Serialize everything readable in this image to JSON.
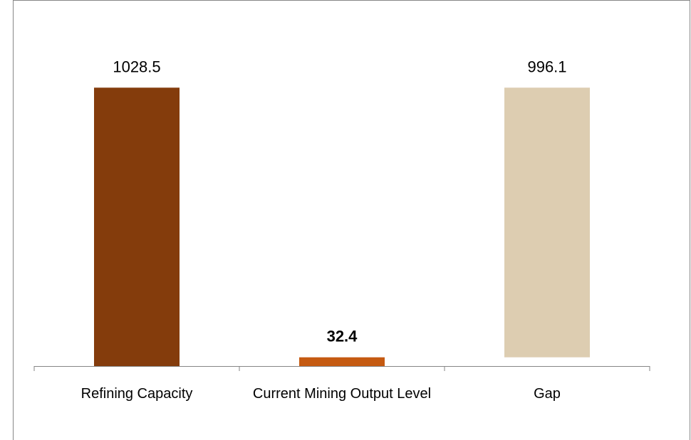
{
  "chart_data": {
    "type": "waterfall",
    "categories": [
      "Refining Capacity",
      "Current Mining Output Level",
      "Gap"
    ],
    "values": [
      1028.5,
      32.4,
      996.1
    ],
    "colors": [
      "#843c0c",
      "#c55a11",
      "#ddcdb1"
    ],
    "bold_labels": [
      false,
      true,
      false
    ],
    "ylim": [
      0,
      1200
    ]
  }
}
